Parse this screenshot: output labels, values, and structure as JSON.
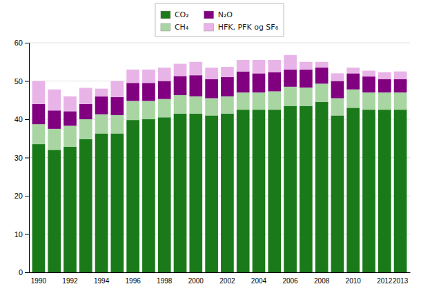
{
  "chart_data": {
    "type": "bar",
    "stacked": true,
    "categories": [
      "1990",
      null,
      "1992",
      null,
      "1994",
      null,
      "1996",
      null,
      "1998",
      null,
      "2000",
      null,
      "2002",
      null,
      "2004",
      null,
      "2006",
      null,
      "2008",
      null,
      "2010",
      null,
      "2012",
      "2013"
    ],
    "series": [
      {
        "name": "CO₂",
        "color": "#1a7a1a",
        "values": [
          33.5,
          32.0,
          32.8,
          34.8,
          36.3,
          36.3,
          39.8,
          40.0,
          40.5,
          41.5,
          41.5,
          41.0,
          41.5,
          42.5,
          42.5,
          42.5,
          43.5,
          43.5,
          44.5,
          41.0,
          43.0,
          42.5,
          42.5,
          42.5
        ]
      },
      {
        "name": "CH₄",
        "color": "#a8d5a2",
        "values": [
          5.2,
          5.5,
          5.5,
          5.2,
          5.0,
          4.8,
          5.0,
          4.8,
          4.8,
          4.8,
          4.5,
          4.5,
          4.5,
          4.5,
          4.5,
          4.8,
          5.0,
          4.8,
          4.8,
          4.5,
          4.8,
          4.5,
          4.5,
          4.5
        ]
      },
      {
        "name": "N₂O",
        "color": "#800080",
        "values": [
          5.3,
          4.8,
          3.8,
          4.0,
          4.7,
          4.7,
          4.7,
          4.7,
          4.7,
          5.0,
          5.5,
          5.0,
          5.0,
          5.5,
          5.0,
          5.0,
          4.5,
          4.7,
          4.2,
          4.5,
          4.2,
          4.2,
          3.5,
          3.5
        ]
      },
      {
        "name": "HFK, PFK og SF₆",
        "color": "#e8b4e8",
        "values": [
          6.0,
          5.5,
          3.9,
          4.2,
          2.0,
          4.2,
          3.5,
          3.5,
          3.5,
          3.2,
          3.5,
          3.0,
          2.7,
          3.0,
          3.5,
          3.2,
          3.8,
          2.0,
          1.5,
          2.0,
          1.5,
          1.5,
          1.8,
          2.0
        ]
      }
    ],
    "ylim": [
      0,
      60
    ],
    "yticks": [
      0,
      10,
      20,
      30,
      40,
      50,
      60
    ],
    "grid": true,
    "legend": "top"
  }
}
